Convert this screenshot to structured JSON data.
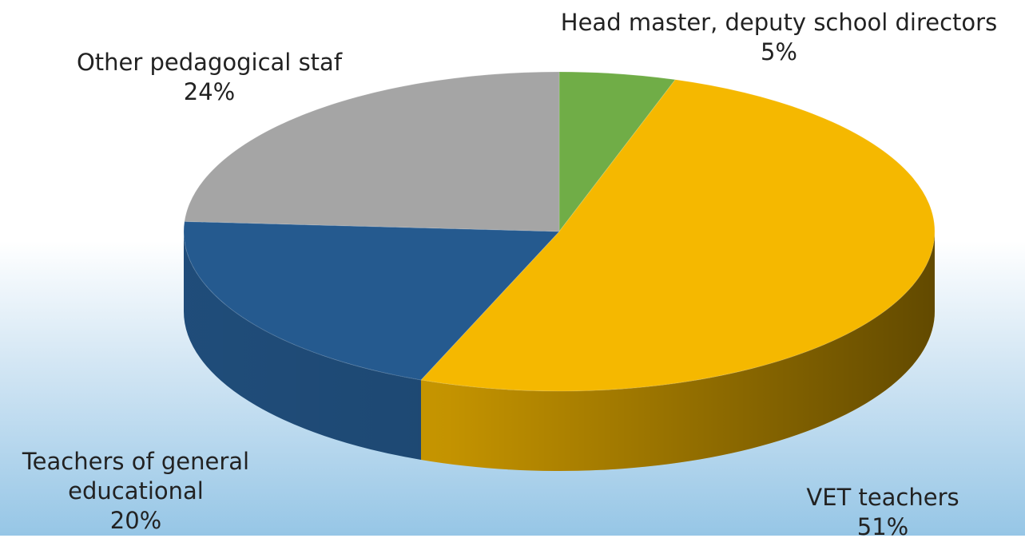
{
  "chart_data": {
    "type": "pie",
    "categories": [
      "Head master, deputy school directors",
      "VET teachers",
      "Teachers of general educational",
      "Other pedagogical staf"
    ],
    "values": [
      5,
      51,
      20,
      24
    ],
    "value_labels": [
      "5%",
      "51%",
      "20%",
      "24%"
    ],
    "colors": [
      "#70ad47",
      "#f5b800",
      "#255a8f",
      "#a5a5a5"
    ]
  }
}
